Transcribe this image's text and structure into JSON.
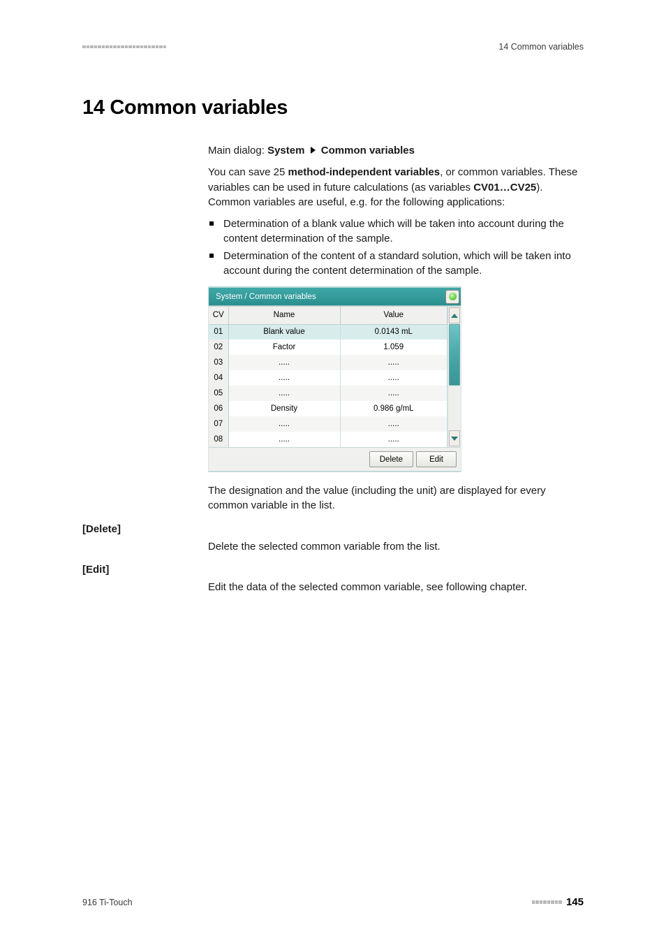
{
  "header": {
    "square_count": 22,
    "right_text": "14 Common variables"
  },
  "heading": "14 Common variables",
  "breadcrumb": {
    "prefix": "Main dialog: ",
    "path1": "System",
    "path2": "Common variables"
  },
  "intro": {
    "line1_a": "You can save 25 ",
    "line1_b": "method-independent variables",
    "line1_c": ", or common variables. These variables can be used in future calculations (as variables ",
    "line2_a": "CV01…CV25",
    "line2_b": "). Common variables are useful, e.g. for the following applications:"
  },
  "bullets": [
    "Determination of a blank value which will be taken into account during the content determination of the sample.",
    "Determination of the content of a standard solution, which will be taken into account during the content determination of the sample."
  ],
  "screenshot": {
    "title": "System / Common variables",
    "columns": {
      "cv": "CV",
      "name": "Name",
      "value": "Value"
    },
    "rows": [
      {
        "cv": "01",
        "name": "Blank value",
        "value": "0.0143 mL",
        "selected": true
      },
      {
        "cv": "02",
        "name": "Factor",
        "value": "1.059",
        "selected": false
      },
      {
        "cv": "03",
        "name": ".....",
        "value": ".....",
        "selected": false
      },
      {
        "cv": "04",
        "name": ".....",
        "value": ".....",
        "selected": false
      },
      {
        "cv": "05",
        "name": ".....",
        "value": ".....",
        "selected": false
      },
      {
        "cv": "06",
        "name": "Density",
        "value": "0.986 g/mL",
        "selected": false
      },
      {
        "cv": "07",
        "name": ".....",
        "value": ".....",
        "selected": false
      },
      {
        "cv": "08",
        "name": ".....",
        "value": ".....",
        "selected": false
      }
    ],
    "buttons": {
      "delete": "Delete",
      "edit": "Edit"
    },
    "colors": {
      "titlebar_bg": "#2f9c9c",
      "titlebar_text": "#ffffff",
      "header_bg": "#f0f0ee",
      "row_odd_bg": "#f5f5f3",
      "row_even_bg": "#ffffff",
      "selected_bg": "#d8ecec",
      "scroll_thumb": "#4aa8a8",
      "border": "#bcd0d0"
    }
  },
  "post_screenshot_para": "The designation and the value (including the unit) are displayed for every common variable in the list.",
  "defs": {
    "delete": {
      "term": "[Delete]",
      "body": "Delete the selected common variable from the list."
    },
    "edit": {
      "term": "[Edit]",
      "body": "Edit the data of the selected common variable, see following chapter."
    }
  },
  "footer": {
    "left_text": "916 Ti-Touch",
    "square_count": 8,
    "page": "145"
  }
}
